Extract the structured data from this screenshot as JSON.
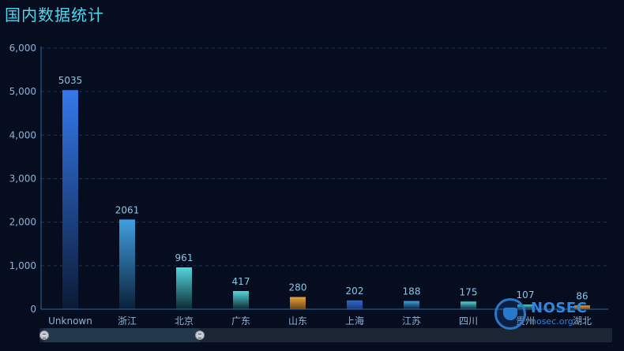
{
  "title": "国内数据统计",
  "watermark": {
    "name": "NOSEC",
    "url": "nosec.org"
  },
  "colors": {
    "blue_top": "#3478ea",
    "blue_bottom": "#0b1a36",
    "lightblue_top": "#3f9fe0",
    "lightblue_bottom": "#0b2038",
    "teal_top": "#52d7dc",
    "teal_bottom": "#0c2a33",
    "orange_top": "#e8a23a",
    "orange_bottom": "#6b4615",
    "darkblue_top": "#2f66d0",
    "darkblue_bottom": "#1a3a80",
    "axis": "#2e6ca6",
    "grid": "#1e3450",
    "tick_text": "#8fb3d6",
    "label_text": "#86c7e6"
  },
  "chart_data": {
    "type": "bar",
    "categories": [
      "Unknown",
      "浙江",
      "北京",
      "广东",
      "山东",
      "上海",
      "江苏",
      "四川",
      "贵州",
      "湖北"
    ],
    "values": [
      5035,
      2061,
      961,
      417,
      280,
      202,
      188,
      175,
      107,
      86
    ],
    "bar_colors": [
      "blue",
      "lightblue",
      "teal",
      "teal",
      "orange",
      "darkblue",
      "lightblue",
      "teal",
      "teal",
      "orange"
    ],
    "yticks": [
      "0",
      "1,000",
      "2,000",
      "3,000",
      "4,000",
      "5,000",
      "6,000"
    ],
    "ylim": [
      0,
      6000
    ],
    "grid": true,
    "data_zoom": {
      "start": 0,
      "end": 0.28
    }
  }
}
